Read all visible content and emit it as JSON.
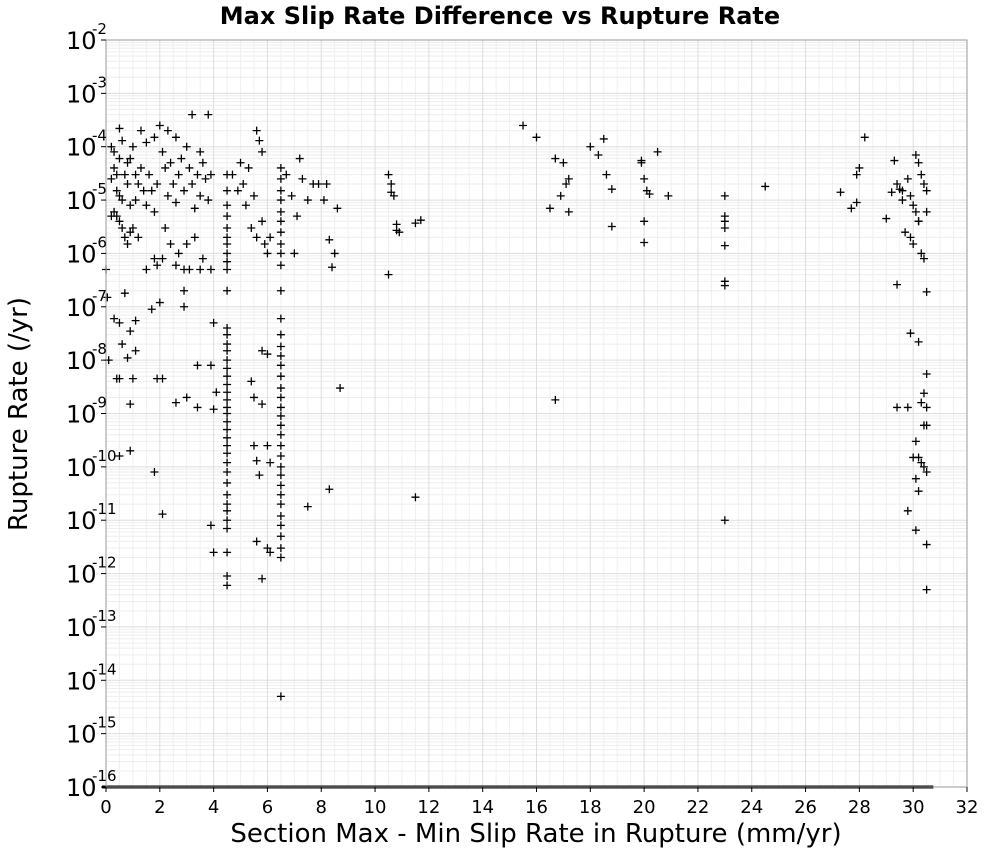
{
  "chart_data": {
    "type": "scatter",
    "title": "Max Slip Rate Difference vs Rupture Rate",
    "xlabel": "Section Max - Min Slip Rate in Rupture (mm/yr)",
    "ylabel": "Rupture Rate (/yr)",
    "xlim": [
      0,
      32
    ],
    "ylim": [
      1e-16,
      0.01
    ],
    "y_scale": "log",
    "marker": "+",
    "marker_color": "#000000",
    "grid": true,
    "x_ticks": [
      "0",
      "2",
      "4",
      "6",
      "8",
      "10",
      "12",
      "14",
      "16",
      "18",
      "20",
      "22",
      "24",
      "26",
      "28",
      "30",
      "32"
    ],
    "y_ticks": [
      {
        "base": "10",
        "exp": "-2"
      },
      {
        "base": "10",
        "exp": "-3"
      },
      {
        "base": "10",
        "exp": "-4"
      },
      {
        "base": "10",
        "exp": "-5"
      },
      {
        "base": "10",
        "exp": "-6"
      },
      {
        "base": "10",
        "exp": "-7"
      },
      {
        "base": "10",
        "exp": "-8"
      },
      {
        "base": "10",
        "exp": "-9"
      },
      {
        "base": "10",
        "exp": "-10"
      },
      {
        "base": "10",
        "exp": "-11"
      },
      {
        "base": "10",
        "exp": "-12"
      },
      {
        "base": "10",
        "exp": "-13"
      },
      {
        "base": "10",
        "exp": "-14"
      },
      {
        "base": "10",
        "exp": "-15"
      },
      {
        "base": "10",
        "exp": "-16"
      }
    ],
    "points": [
      [
        0.2,
        2.5e-05
      ],
      [
        0.3,
        4e-05
      ],
      [
        0.4,
        1.5e-05
      ],
      [
        0.5,
        6e-05
      ],
      [
        0.6,
        1e-05
      ],
      [
        0.7,
        3e-05
      ],
      [
        0.8,
        2e-05
      ],
      [
        0.9,
        8e-06
      ],
      [
        0.3,
        8e-05
      ],
      [
        0.5,
        1.2e-05
      ],
      [
        0.4,
        5e-06
      ],
      [
        0.6,
        3e-06
      ],
      [
        0.7,
        2e-06
      ],
      [
        0.8,
        1.5e-06
      ],
      [
        0.9,
        2.5e-06
      ],
      [
        1.0,
        3e-06
      ],
      [
        0.2,
        5e-06
      ],
      [
        0.3,
        6e-06
      ],
      [
        0.5,
        4e-06
      ],
      [
        1.1,
        1e-05
      ],
      [
        1.2,
        2e-05
      ],
      [
        1.3,
        4e-05
      ],
      [
        1.4,
        1.5e-05
      ],
      [
        1.5,
        8e-06
      ],
      [
        0.5,
        0.00022
      ],
      [
        0.6,
        0.00013
      ],
      [
        1.0,
        0.0001
      ],
      [
        0.9,
        6e-05
      ],
      [
        1.1,
        3e-05
      ],
      [
        0.8,
        5e-05
      ],
      [
        0.2,
        0.0001
      ],
      [
        0.4,
        3e-05
      ],
      [
        1.6,
        3e-05
      ],
      [
        1.7,
        1.5e-05
      ],
      [
        1.8,
        6e-06
      ],
      [
        1.9,
        2e-05
      ],
      [
        2.0,
        0.00025
      ],
      [
        2.1,
        8e-05
      ],
      [
        2.2,
        4e-05
      ],
      [
        2.3,
        1.2e-05
      ],
      [
        2.4,
        5e-05
      ],
      [
        2.5,
        2e-05
      ],
      [
        2.6,
        9e-06
      ],
      [
        2.7,
        3e-05
      ],
      [
        2.8,
        6e-05
      ],
      [
        2.9,
        1.5e-05
      ],
      [
        3.0,
        0.0001
      ],
      [
        3.1,
        4e-05
      ],
      [
        3.2,
        2e-05
      ],
      [
        3.3,
        7e-06
      ],
      [
        3.4,
        3e-05
      ],
      [
        3.5,
        1.2e-05
      ],
      [
        3.6,
        5e-05
      ],
      [
        3.7,
        2.5e-05
      ],
      [
        3.8,
        1e-05
      ],
      [
        3.9,
        3e-05
      ],
      [
        1.3,
        0.0002
      ],
      [
        1.5,
        0.00012
      ],
      [
        1.8,
        0.00015
      ],
      [
        2.3,
        0.0002
      ],
      [
        2.6,
        0.00015
      ],
      [
        3.2,
        0.0004
      ],
      [
        3.8,
        0.0004
      ],
      [
        3.5,
        8e-05
      ],
      [
        1.9,
        6e-07
      ],
      [
        2.1,
        8e-07
      ],
      [
        2.4,
        1.5e-06
      ],
      [
        2.6,
        6e-07
      ],
      [
        2.9,
        5e-07
      ],
      [
        3.1,
        5e-07
      ],
      [
        3.3,
        2e-06
      ],
      [
        3.5,
        5e-07
      ],
      [
        1.5,
        5e-07
      ],
      [
        1.8,
        8e-07
      ],
      [
        2.2,
        3e-06
      ],
      [
        2.7,
        1e-06
      ],
      [
        3.0,
        1.5e-06
      ],
      [
        3.6,
        8e-07
      ],
      [
        3.9,
        5e-07
      ],
      [
        1.2,
        2e-06
      ],
      [
        0.0,
        5e-07
      ],
      [
        0.05,
        1.5e-07
      ],
      [
        0.3,
        6e-08
      ],
      [
        0.5,
        5e-08
      ],
      [
        0.6,
        2e-08
      ],
      [
        0.8,
        1.1e-08
      ],
      [
        0.9,
        3.5e-08
      ],
      [
        1.1,
        5.5e-08
      ],
      [
        0.7,
        1.8e-07
      ],
      [
        1.7,
        9e-08
      ],
      [
        2.0,
        1.2e-07
      ],
      [
        2.9,
        2e-07
      ],
      [
        2.9,
        1e-07
      ],
      [
        0.1,
        1e-08
      ],
      [
        0.4,
        4.5e-09
      ],
      [
        0.5,
        4.5e-09
      ],
      [
        1.1,
        1.5e-08
      ],
      [
        1.0,
        4.5e-09
      ],
      [
        1.9,
        4.5e-09
      ],
      [
        2.1,
        4.5e-09
      ],
      [
        0.9,
        1.5e-09
      ],
      [
        2.6,
        1.6e-09
      ],
      [
        3.4,
        8e-09
      ],
      [
        3.4,
        1.3e-09
      ],
      [
        0.5,
        1.6e-10
      ],
      [
        0.9,
        2e-10
      ],
      [
        1.8,
        8e-11
      ],
      [
        2.1,
        1.3e-11
      ],
      [
        3.0,
        2e-09
      ],
      [
        3.9,
        8e-09
      ],
      [
        4.0,
        5e-08
      ],
      [
        4.1,
        2.5e-09
      ],
      [
        4.0,
        1.2e-09
      ],
      [
        3.9,
        8e-12
      ],
      [
        4.0,
        2.5e-12
      ],
      [
        4.5,
        3e-05
      ],
      [
        4.5,
        1.5e-05
      ],
      [
        4.5,
        8e-06
      ],
      [
        4.5,
        5e-06
      ],
      [
        4.5,
        3e-06
      ],
      [
        4.5,
        2e-06
      ],
      [
        4.5,
        1.5e-06
      ],
      [
        4.5,
        1e-06
      ],
      [
        4.5,
        7e-07
      ],
      [
        4.5,
        5e-07
      ],
      [
        4.5,
        2e-07
      ],
      [
        4.5,
        4e-08
      ],
      [
        4.5,
        3e-08
      ],
      [
        4.5,
        2e-08
      ],
      [
        4.5,
        1.5e-08
      ],
      [
        4.5,
        1e-08
      ],
      [
        4.5,
        7e-09
      ],
      [
        4.5,
        5e-09
      ],
      [
        4.5,
        3.5e-09
      ],
      [
        4.5,
        2.5e-09
      ],
      [
        4.5,
        1.8e-09
      ],
      [
        4.5,
        1.3e-09
      ],
      [
        4.5,
        1e-09
      ],
      [
        4.5,
        7e-10
      ],
      [
        4.5,
        5e-10
      ],
      [
        4.5,
        3.5e-10
      ],
      [
        4.5,
        2.5e-10
      ],
      [
        4.5,
        1.8e-10
      ],
      [
        4.5,
        1.2e-10
      ],
      [
        4.5,
        8e-11
      ],
      [
        4.5,
        5e-11
      ],
      [
        4.5,
        3e-11
      ],
      [
        4.5,
        2e-11
      ],
      [
        4.5,
        1.5e-11
      ],
      [
        4.5,
        1e-11
      ],
      [
        4.5,
        7e-12
      ],
      [
        4.5,
        2.5e-12
      ],
      [
        4.5,
        9e-13
      ],
      [
        4.5,
        6e-13
      ],
      [
        4.7,
        3e-05
      ],
      [
        4.9,
        1.5e-05
      ],
      [
        5.0,
        5e-05
      ],
      [
        5.1,
        2e-05
      ],
      [
        5.2,
        8e-06
      ],
      [
        5.3,
        4e-05
      ],
      [
        5.5,
        1.2e-05
      ],
      [
        5.6,
        0.0002
      ],
      [
        5.7,
        0.00013
      ],
      [
        5.8,
        8e-05
      ],
      [
        5.4,
        3e-06
      ],
      [
        5.6,
        2e-06
      ],
      [
        5.8,
        4e-06
      ],
      [
        5.9,
        1.5e-06
      ],
      [
        6.0,
        1e-06
      ],
      [
        6.1,
        2e-06
      ],
      [
        5.5,
        2.5e-10
      ],
      [
        5.6,
        1.3e-10
      ],
      [
        5.7,
        7e-11
      ],
      [
        5.8,
        1.5e-09
      ],
      [
        5.8,
        1.5e-08
      ],
      [
        6.0,
        1.3e-08
      ],
      [
        5.6,
        4e-12
      ],
      [
        5.8,
        8e-13
      ],
      [
        6.0,
        2.5e-10
      ],
      [
        6.1,
        1.2e-10
      ],
      [
        6.0,
        3e-12
      ],
      [
        6.1,
        2.5e-12
      ],
      [
        5.4,
        4e-09
      ],
      [
        5.5,
        2e-09
      ],
      [
        6.5,
        4e-05
      ],
      [
        6.5,
        2.5e-05
      ],
      [
        6.5,
        1.5e-05
      ],
      [
        6.5,
        1e-05
      ],
      [
        6.5,
        6e-06
      ],
      [
        6.5,
        4e-06
      ],
      [
        6.5,
        2.5e-06
      ],
      [
        6.5,
        1.5e-06
      ],
      [
        6.5,
        1e-06
      ],
      [
        6.5,
        6e-07
      ],
      [
        6.5,
        2e-07
      ],
      [
        6.5,
        6e-08
      ],
      [
        6.5,
        3e-08
      ],
      [
        6.5,
        1.8e-08
      ],
      [
        6.5,
        1.2e-08
      ],
      [
        6.5,
        8e-09
      ],
      [
        6.5,
        5e-09
      ],
      [
        6.5,
        3e-09
      ],
      [
        6.5,
        2e-09
      ],
      [
        6.5,
        1.3e-09
      ],
      [
        6.5,
        9e-10
      ],
      [
        6.5,
        6e-10
      ],
      [
        6.5,
        4e-10
      ],
      [
        6.5,
        2.5e-10
      ],
      [
        6.5,
        1.6e-10
      ],
      [
        6.5,
        1e-10
      ],
      [
        6.5,
        7e-11
      ],
      [
        6.5,
        4.5e-11
      ],
      [
        6.5,
        3e-11
      ],
      [
        6.5,
        2e-11
      ],
      [
        6.5,
        1.2e-11
      ],
      [
        6.5,
        8e-12
      ],
      [
        6.5,
        5e-12
      ],
      [
        6.5,
        3e-12
      ],
      [
        6.5,
        2e-12
      ],
      [
        6.5,
        5e-15
      ],
      [
        6.7,
        3e-05
      ],
      [
        6.9,
        1.2e-05
      ],
      [
        7.1,
        5e-06
      ],
      [
        7.3,
        2.5e-05
      ],
      [
        7.5,
        1e-05
      ],
      [
        7.7,
        2e-05
      ],
      [
        7.2,
        6e-05
      ],
      [
        7.0,
        1e-06
      ],
      [
        7.5,
        1.8e-11
      ],
      [
        7.9,
        2e-05
      ],
      [
        8.1,
        1e-05
      ],
      [
        8.2,
        2e-05
      ],
      [
        8.3,
        1.8e-06
      ],
      [
        8.4,
        5.5e-07
      ],
      [
        8.5,
        1e-06
      ],
      [
        8.6,
        7e-06
      ],
      [
        8.3,
        3.8e-11
      ],
      [
        8.7,
        3e-09
      ],
      [
        10.5,
        3e-05
      ],
      [
        10.6,
        1.4e-05
      ],
      [
        10.7,
        1.2e-05
      ],
      [
        10.6,
        2e-05
      ],
      [
        10.8,
        3.5e-06
      ],
      [
        10.9,
        2.5e-06
      ],
      [
        10.8,
        2.7e-06
      ],
      [
        10.5,
        4e-07
      ],
      [
        11.5,
        3.7e-06
      ],
      [
        11.7,
        4.2e-06
      ],
      [
        11.5,
        2.7e-11
      ],
      [
        15.5,
        0.00025
      ],
      [
        16.0,
        0.00015
      ],
      [
        16.5,
        7e-06
      ],
      [
        16.7,
        6e-05
      ],
      [
        16.9,
        1.2e-05
      ],
      [
        17.0,
        5e-05
      ],
      [
        17.1,
        2e-05
      ],
      [
        17.2,
        2.5e-05
      ],
      [
        17.2,
        6e-06
      ],
      [
        16.7,
        1.8e-09
      ],
      [
        18.0,
        0.0001
      ],
      [
        18.3,
        7e-05
      ],
      [
        18.5,
        0.00014
      ],
      [
        18.6,
        3e-05
      ],
      [
        18.8,
        1.6e-05
      ],
      [
        18.8,
        3.2e-06
      ],
      [
        19.9,
        5.5e-05
      ],
      [
        19.9,
        5e-05
      ],
      [
        20.0,
        2.5e-05
      ],
      [
        20.1,
        1.5e-05
      ],
      [
        20.0,
        4e-06
      ],
      [
        20.0,
        1.6e-06
      ],
      [
        20.2,
        1.3e-05
      ],
      [
        20.5,
        8e-05
      ],
      [
        20.9,
        1.2e-05
      ],
      [
        23.0,
        1.2e-05
      ],
      [
        23.0,
        5e-06
      ],
      [
        23.0,
        4e-06
      ],
      [
        23.0,
        3e-06
      ],
      [
        23.0,
        1.4e-06
      ],
      [
        23.0,
        3e-07
      ],
      [
        23.0,
        2.5e-07
      ],
      [
        23.0,
        1e-11
      ],
      [
        24.5,
        1.8e-05
      ],
      [
        27.3,
        1.4e-05
      ],
      [
        27.7,
        7e-06
      ],
      [
        27.9,
        3e-05
      ],
      [
        28.0,
        4e-05
      ],
      [
        28.2,
        0.00015
      ],
      [
        27.9,
        9e-06
      ],
      [
        29.0,
        4.5e-06
      ],
      [
        29.2,
        1.4e-05
      ],
      [
        29.3,
        5.5e-05
      ],
      [
        29.4,
        2e-05
      ],
      [
        29.5,
        1.6e-05
      ],
      [
        29.6,
        1e-05
      ],
      [
        29.8,
        2.5e-05
      ],
      [
        29.9,
        1.2e-05
      ],
      [
        30.0,
        8e-06
      ],
      [
        30.1,
        6e-06
      ],
      [
        30.2,
        4e-06
      ],
      [
        30.3,
        3e-05
      ],
      [
        30.4,
        2e-05
      ],
      [
        30.5,
        1.5e-05
      ],
      [
        30.1,
        7e-05
      ],
      [
        30.2,
        5e-05
      ],
      [
        29.7,
        2.5e-06
      ],
      [
        29.9,
        2e-06
      ],
      [
        30.0,
        1.5e-06
      ],
      [
        30.3,
        1e-06
      ],
      [
        30.4,
        8e-07
      ],
      [
        30.5,
        6e-06
      ],
      [
        30.2,
        4e-06
      ],
      [
        29.6,
        1.5e-05
      ],
      [
        29.4,
        2.6e-07
      ],
      [
        30.5,
        1.9e-07
      ],
      [
        29.9,
        3.2e-08
      ],
      [
        30.2,
        2.2e-08
      ],
      [
        30.5,
        5.5e-09
      ],
      [
        30.4,
        2.4e-09
      ],
      [
        30.3,
        1.6e-09
      ],
      [
        30.5,
        1.3e-09
      ],
      [
        29.4,
        1.3e-09
      ],
      [
        29.8,
        1.3e-09
      ],
      [
        30.5,
        6e-10
      ],
      [
        30.4,
        6e-10
      ],
      [
        30.1,
        3e-10
      ],
      [
        30.2,
        1.5e-10
      ],
      [
        30.3,
        1.2e-10
      ],
      [
        30.0,
        1.5e-10
      ],
      [
        30.4,
        1e-10
      ],
      [
        30.5,
        8e-11
      ],
      [
        30.1,
        6e-11
      ],
      [
        30.2,
        3.5e-11
      ],
      [
        29.8,
        1.5e-11
      ],
      [
        30.1,
        6.5e-12
      ],
      [
        30.5,
        3.5e-12
      ],
      [
        30.5,
        5e-13
      ]
    ]
  }
}
